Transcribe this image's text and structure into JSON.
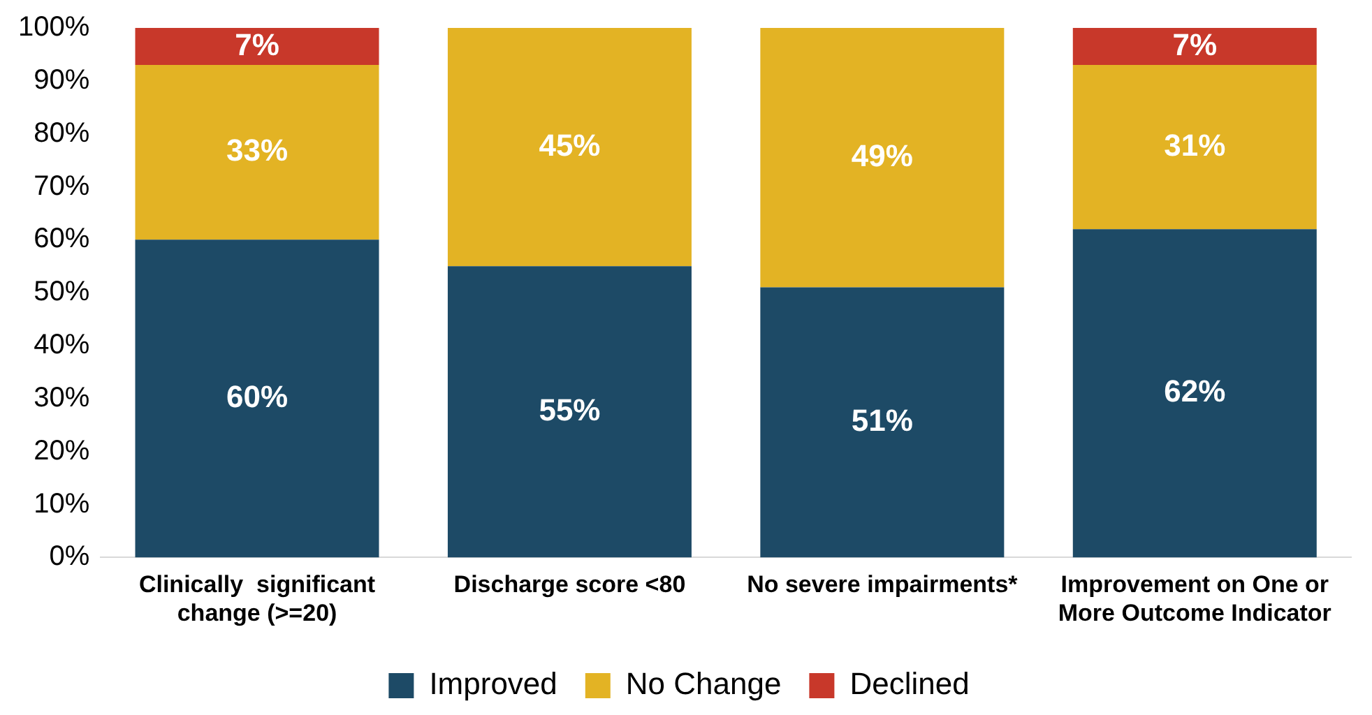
{
  "chart_data": {
    "type": "bar",
    "stacked": true,
    "categories": [
      "Clinically  significant change (>=20)",
      "Discharge score <80",
      "No severe impairments*",
      "Improvement on One or More Outcome Indicator"
    ],
    "series": [
      {
        "name": "Improved",
        "color": "#1d4a66",
        "values": [
          60,
          55,
          51,
          62
        ],
        "value_labels": [
          "60%",
          "55%",
          "51%",
          "62%"
        ]
      },
      {
        "name": "No Change",
        "color": "#e3b324",
        "values": [
          33,
          45,
          49,
          31
        ],
        "value_labels": [
          "33%",
          "45%",
          "49%",
          "31%"
        ]
      },
      {
        "name": "Declined",
        "color": "#c8382a",
        "values": [
          7,
          0,
          0,
          7
        ],
        "value_labels": [
          "7%",
          null,
          null,
          "7%"
        ]
      }
    ],
    "ylim": [
      0,
      100
    ],
    "yticks": [
      {
        "value": 0,
        "label": "0%"
      },
      {
        "value": 10,
        "label": "10%"
      },
      {
        "value": 20,
        "label": "20%"
      },
      {
        "value": 30,
        "label": "30%"
      },
      {
        "value": 40,
        "label": "40%"
      },
      {
        "value": 50,
        "label": "50%"
      },
      {
        "value": 60,
        "label": "60%"
      },
      {
        "value": 70,
        "label": "70%"
      },
      {
        "value": 80,
        "label": "80%"
      },
      {
        "value": 90,
        "label": "90%"
      },
      {
        "value": 100,
        "label": "100%"
      }
    ],
    "grid": false,
    "legend": "bottom"
  }
}
